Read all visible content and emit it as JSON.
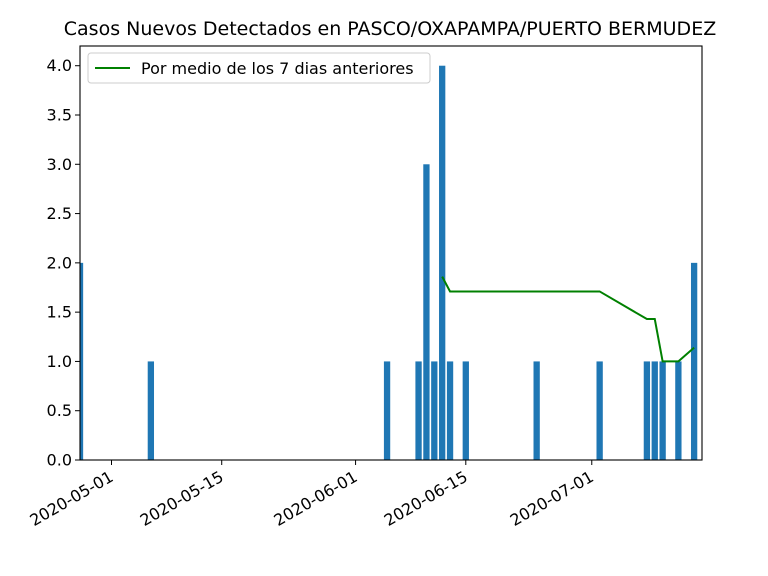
{
  "chart_data": {
    "type": "bar",
    "title": "Casos Nuevos Detectados en PASCO/OXAPAMPA/PUERTO BERMUDEZ",
    "x_tick_labels": [
      "2020-05-01",
      "2020-05-15",
      "2020-06-01",
      "2020-06-15",
      "2020-07-01"
    ],
    "y_tick_labels": [
      "0.0",
      "0.5",
      "1.0",
      "1.5",
      "2.0",
      "2.5",
      "3.0",
      "3.5",
      "4.0"
    ],
    "ylim": [
      0,
      4.2
    ],
    "xlim": [
      "2020-04-27",
      "2020-07-15"
    ],
    "legend_position": "upper-left",
    "colors": {
      "bars": "#1f77b4",
      "line": "#008000"
    },
    "bars": [
      {
        "date": "2020-04-27",
        "value": 2
      },
      {
        "date": "2020-05-06",
        "value": 1
      },
      {
        "date": "2020-06-05",
        "value": 1
      },
      {
        "date": "2020-06-09",
        "value": 1
      },
      {
        "date": "2020-06-10",
        "value": 3
      },
      {
        "date": "2020-06-11",
        "value": 1
      },
      {
        "date": "2020-06-12",
        "value": 4
      },
      {
        "date": "2020-06-13",
        "value": 1
      },
      {
        "date": "2020-06-15",
        "value": 1
      },
      {
        "date": "2020-06-24",
        "value": 1
      },
      {
        "date": "2020-07-02",
        "value": 1
      },
      {
        "date": "2020-07-08",
        "value": 1
      },
      {
        "date": "2020-07-09",
        "value": 1
      },
      {
        "date": "2020-07-10",
        "value": 1
      },
      {
        "date": "2020-07-12",
        "value": 1
      },
      {
        "date": "2020-07-14",
        "value": 2
      }
    ],
    "series": [
      {
        "name": "Por medio de los 7 dias anteriores",
        "points": [
          {
            "date": "2020-06-12",
            "value": 1.86
          },
          {
            "date": "2020-06-13",
            "value": 1.71
          },
          {
            "date": "2020-07-02",
            "value": 1.71
          },
          {
            "date": "2020-07-08",
            "value": 1.43
          },
          {
            "date": "2020-07-09",
            "value": 1.43
          },
          {
            "date": "2020-07-10",
            "value": 1.0
          },
          {
            "date": "2020-07-12",
            "value": 1.0
          },
          {
            "date": "2020-07-14",
            "value": 1.14
          }
        ]
      }
    ]
  }
}
